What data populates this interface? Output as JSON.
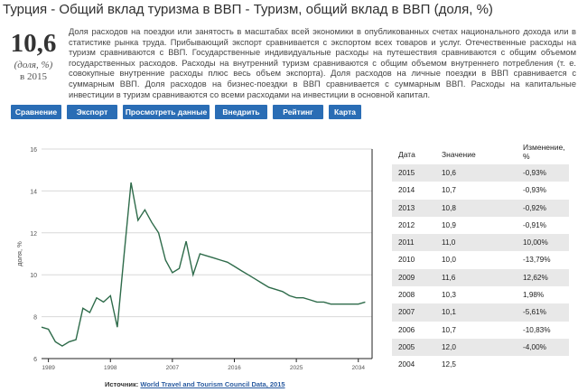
{
  "title": "Турция - Общий вклад туризма в ВВП - Туризм, общий вклад в ВВП (доля, %)",
  "stat": {
    "value": "10,6",
    "unit": "(доля, %)",
    "year": "в 2015"
  },
  "description": "Доля расходов на поездки или занятость в масштабах всей экономики в опубликованных счетах национального дохода или в статистике рынка труда. Прибывающий экспорт сравнивается с экспортом всех товаров и услуг. Отечественные расходы на туризм сравниваются с ВВП. Государственные индивидуальные расходы на путешествия сравниваются с общим объемом государственных расходов. Расходы на внутренний туризм сравниваются с общим объемом внутреннего потребления (т. е. совокупные внутренние расходы плюс весь объем экспорта). Доля расходов на личные поездки в ВВП сравнивается с суммарным ВВП. Доля расходов на бизнес-поездки в ВВП сравнивается с суммарным ВВП. Расходы на капитальные инвестиции в туризм сравниваются со всеми расходами на инвестиции в основной капитал.",
  "buttons": [
    "Сравнение",
    "Экспорт",
    "Просмотреть данные",
    "Внедрить",
    "Рейтинг",
    "Карта"
  ],
  "source": {
    "label": "Источник:",
    "link": "World Travel and Tourism Council Data, 2015"
  },
  "table": {
    "headers": {
      "date": "Дата",
      "value": "Значение",
      "change": "Изменение, %"
    },
    "rows": [
      {
        "date": "2015",
        "value": "10,6",
        "change": "-0,93%"
      },
      {
        "date": "2014",
        "value": "10,7",
        "change": "-0,93%"
      },
      {
        "date": "2013",
        "value": "10,8",
        "change": "-0,92%"
      },
      {
        "date": "2012",
        "value": "10,9",
        "change": "-0,91%"
      },
      {
        "date": "2011",
        "value": "11,0",
        "change": "10,00%"
      },
      {
        "date": "2010",
        "value": "10,0",
        "change": "-13,79%"
      },
      {
        "date": "2009",
        "value": "11,6",
        "change": "12,62%"
      },
      {
        "date": "2008",
        "value": "10,3",
        "change": "1,98%"
      },
      {
        "date": "2007",
        "value": "10,1",
        "change": "-5,61%"
      },
      {
        "date": "2006",
        "value": "10,7",
        "change": "-10,83%"
      },
      {
        "date": "2005",
        "value": "12,0",
        "change": "-4,00%"
      },
      {
        "date": "2004",
        "value": "12,5",
        "change": ""
      }
    ]
  },
  "chart_data": {
    "type": "line",
    "ylabel": "доля, %",
    "xlabel": "",
    "ylim": [
      6,
      16
    ],
    "xlim": [
      1988,
      2036
    ],
    "yticks": [
      "6",
      "8",
      "10",
      "12",
      "14",
      "16"
    ],
    "xticks": [
      "1989",
      "1998",
      "2007",
      "2016",
      "2025",
      "2034"
    ],
    "grid": "horizontal",
    "color": "#2e6b4a",
    "series": [
      {
        "x": [
          1988,
          1989,
          1990,
          1991,
          1992,
          1993,
          1994,
          1995,
          1996,
          1997,
          1998,
          1999,
          2000,
          2001,
          2002,
          2003,
          2004,
          2005,
          2006,
          2007,
          2008,
          2009,
          2010,
          2011,
          2012,
          2013,
          2014,
          2015,
          2016,
          2017,
          2018,
          2019,
          2020,
          2021,
          2022,
          2023,
          2024,
          2025,
          2026,
          2027,
          2028,
          2029,
          2030,
          2031,
          2032,
          2033,
          2034,
          2035
        ],
        "y": [
          7.5,
          7.4,
          6.8,
          6.6,
          6.8,
          6.9,
          8.4,
          8.2,
          8.9,
          8.7,
          9.0,
          7.5,
          11.0,
          14.4,
          12.6,
          13.1,
          12.5,
          12.0,
          10.7,
          10.1,
          10.3,
          11.6,
          10.0,
          11.0,
          10.9,
          10.8,
          10.7,
          10.6,
          10.4,
          10.2,
          10.0,
          9.8,
          9.6,
          9.4,
          9.3,
          9.2,
          9.0,
          8.9,
          8.9,
          8.8,
          8.7,
          8.7,
          8.6,
          8.6,
          8.6,
          8.6,
          8.6,
          8.7
        ]
      }
    ]
  }
}
